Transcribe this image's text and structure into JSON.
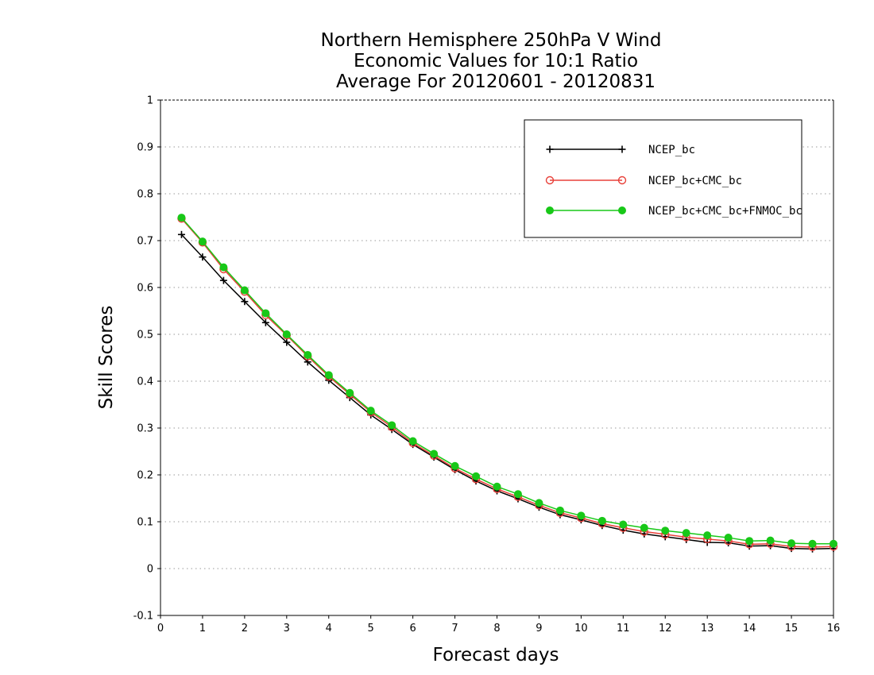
{
  "chart_data": {
    "type": "line",
    "title_lines": [
      "Northern Hemisphere 250hPa V Wind",
      "Economic Values for 10:1 Ratio",
      "Average For 20120601 - 20120831"
    ],
    "xlabel": "Forecast days",
    "ylabel": "Skill Scores",
    "xlim": [
      0,
      16
    ],
    "ylim": [
      -0.1,
      1
    ],
    "x_ticks": [
      0,
      1,
      2,
      3,
      4,
      5,
      6,
      7,
      8,
      9,
      10,
      11,
      12,
      13,
      14,
      15,
      16
    ],
    "y_ticks": [
      -0.1,
      0,
      0.1,
      0.2,
      0.3,
      0.4,
      0.5,
      0.6,
      0.7,
      0.8,
      0.9,
      1
    ],
    "y_tick_labels": [
      "-0.1",
      "0",
      "0.1",
      "0.2",
      "0.3",
      "0.4",
      "0.5",
      "0.6",
      "0.7",
      "0.8",
      "0.9",
      "1"
    ],
    "grid": "horizontal dotted",
    "legend_position": "top-right",
    "x": [
      0.5,
      1,
      1.5,
      2,
      2.5,
      3,
      3.5,
      4,
      4.5,
      5,
      5.5,
      6,
      6.5,
      7,
      7.5,
      8,
      8.5,
      9,
      9.5,
      10,
      10.5,
      11,
      11.5,
      12,
      12.5,
      13,
      13.5,
      14,
      14.5,
      15,
      15.5,
      16
    ],
    "series": [
      {
        "name": "NCEP_bc",
        "color": "#000000",
        "marker": "plus",
        "values": [
          0.713,
          0.665,
          0.615,
          0.57,
          0.525,
          0.483,
          0.441,
          0.402,
          0.365,
          0.328,
          0.297,
          0.265,
          0.238,
          0.211,
          0.187,
          0.166,
          0.149,
          0.131,
          0.115,
          0.104,
          0.092,
          0.082,
          0.074,
          0.068,
          0.062,
          0.056,
          0.055,
          0.048,
          0.049,
          0.043,
          0.042,
          0.043
        ]
      },
      {
        "name": "NCEP_bc+CMC_bc",
        "color": "#e8413a",
        "marker": "open-circle",
        "values": [
          0.747,
          0.696,
          0.639,
          0.591,
          0.541,
          0.498,
          0.453,
          0.41,
          0.372,
          0.334,
          0.302,
          0.268,
          0.241,
          0.214,
          0.191,
          0.17,
          0.153,
          0.135,
          0.119,
          0.108,
          0.096,
          0.087,
          0.079,
          0.073,
          0.067,
          0.063,
          0.059,
          0.052,
          0.053,
          0.047,
          0.046,
          0.047
        ]
      },
      {
        "name": "NCEP_bc+CMC_bc+FNMOC_bc",
        "color": "#18c818",
        "marker": "filled-circle",
        "values": [
          0.749,
          0.698,
          0.643,
          0.594,
          0.545,
          0.5,
          0.456,
          0.413,
          0.375,
          0.337,
          0.306,
          0.272,
          0.245,
          0.219,
          0.197,
          0.175,
          0.159,
          0.14,
          0.124,
          0.113,
          0.102,
          0.094,
          0.087,
          0.081,
          0.076,
          0.071,
          0.066,
          0.059,
          0.06,
          0.054,
          0.053,
          0.053
        ]
      }
    ]
  }
}
